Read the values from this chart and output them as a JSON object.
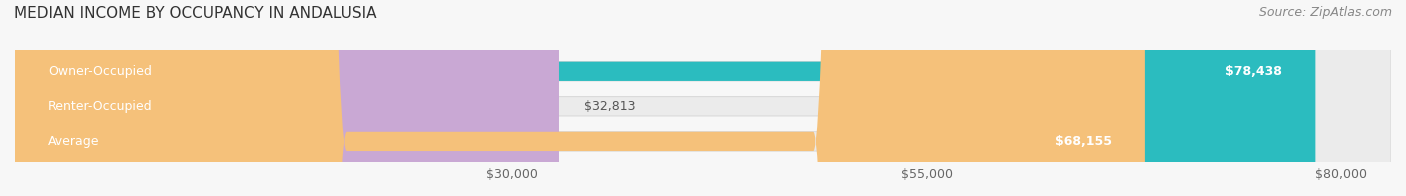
{
  "title": "MEDIAN INCOME BY OCCUPANCY IN ANDALUSIA",
  "source": "Source: ZipAtlas.com",
  "categories": [
    "Owner-Occupied",
    "Renter-Occupied",
    "Average"
  ],
  "values": [
    78438,
    32813,
    68155
  ],
  "bar_colors": [
    "#2bbcbf",
    "#c9a8d4",
    "#f5c17a"
  ],
  "bar_bg_color": "#f0f0f0",
  "value_labels": [
    "$78,438",
    "$32,813",
    "$68,155"
  ],
  "x_ticks": [
    30000,
    55000,
    80000
  ],
  "x_tick_labels": [
    "$30,000",
    "$55,000",
    "$80,000"
  ],
  "xlim": [
    0,
    83000
  ],
  "title_fontsize": 11,
  "source_fontsize": 9,
  "label_fontsize": 9,
  "tick_fontsize": 9,
  "background_color": "#f7f7f7"
}
